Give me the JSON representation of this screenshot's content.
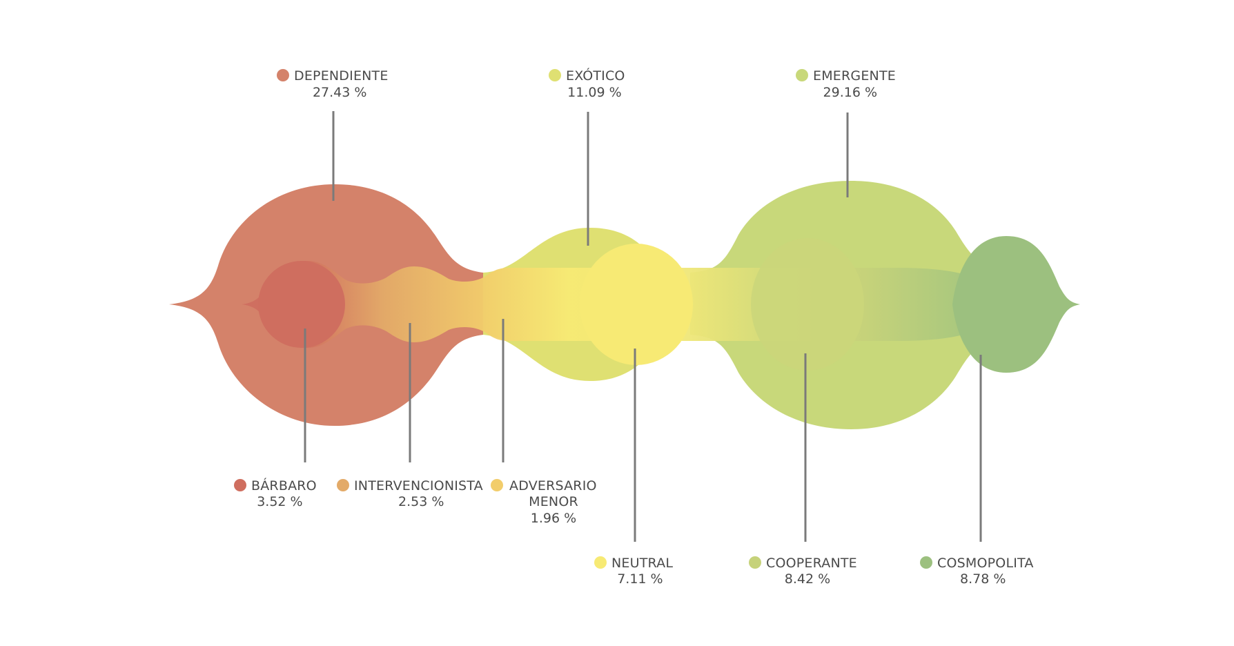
{
  "chart_data": {
    "type": "bubble-stream",
    "title": "",
    "unit": "%",
    "categories": [
      {
        "key": "dependiente",
        "name": "DEPENDIENTE",
        "label": "27.43 %",
        "value": 27.43,
        "color": "#d4826a",
        "group": "major"
      },
      {
        "key": "exotico",
        "name": "EXÓTICO",
        "label": "11.09 %",
        "value": 11.09,
        "color": "#dfe072",
        "group": "major"
      },
      {
        "key": "emergente",
        "name": "EMERGENTE",
        "label": "29.16 %",
        "value": 29.16,
        "color": "#c8d87a",
        "group": "major"
      },
      {
        "key": "barbaro",
        "name": "BÁRBARO",
        "label": "3.52 %",
        "value": 3.52,
        "color": "#cf6e5f",
        "group": "minor"
      },
      {
        "key": "intervencionista",
        "name": "INTERVENCIONISTA",
        "label": "2.53 %",
        "value": 2.53,
        "color": "#e3aa68",
        "group": "minor"
      },
      {
        "key": "adversario_menor",
        "name_lines": [
          "ADVERSARIO",
          "MENOR"
        ],
        "label": "1.96 %",
        "value": 1.96,
        "color": "#f2cd6b",
        "group": "minor"
      },
      {
        "key": "neutral",
        "name": "NEUTRAL",
        "label": "7.11 %",
        "value": 7.11,
        "color": "#f7ea74",
        "group": "minor"
      },
      {
        "key": "cooperante",
        "name": "COOPERANTE",
        "label": "8.42 %",
        "value": 8.42,
        "color": "#c6d27a",
        "group": "minor"
      },
      {
        "key": "cosmopolita",
        "name": "COSMOPOLITA",
        "label": "8.78 %",
        "value": 8.78,
        "color": "#9cc07f",
        "group": "minor"
      }
    ]
  }
}
